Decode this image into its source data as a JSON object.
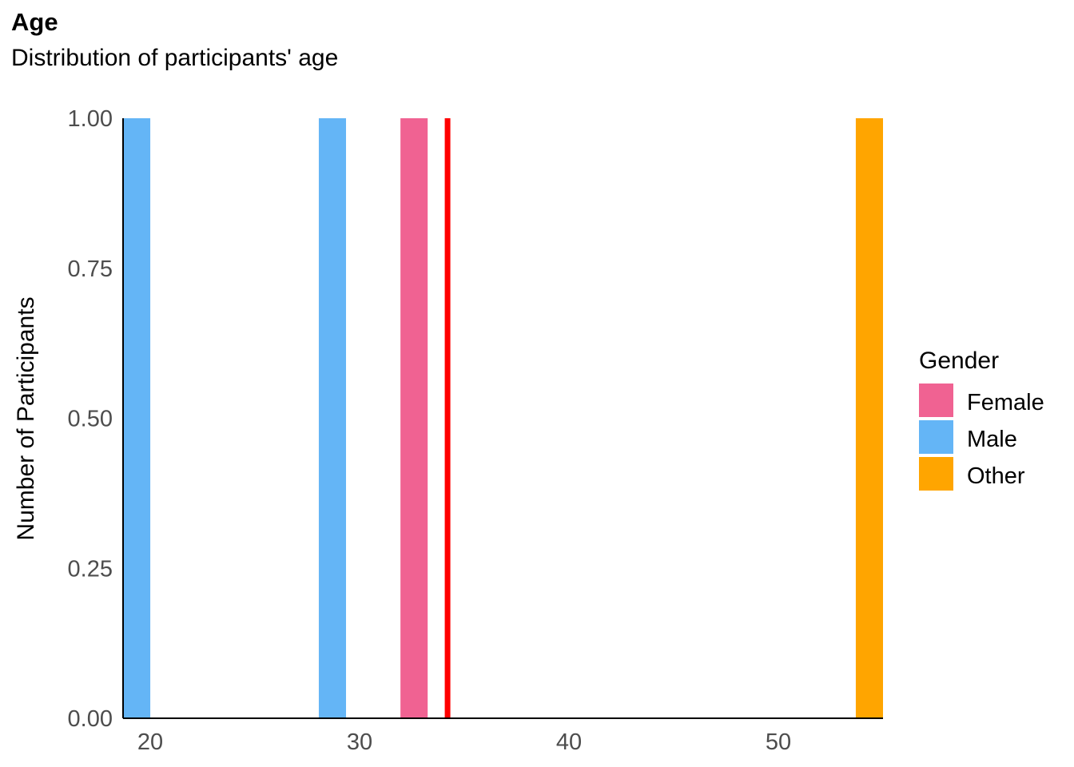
{
  "chart_data": {
    "type": "bar",
    "title": "Age",
    "subtitle": "Distribution of participants' age",
    "xlabel": "",
    "ylabel": "Number of Participants",
    "xlim": [
      18.7,
      55
    ],
    "ylim": [
      0,
      1
    ],
    "x_ticks": [
      20,
      30,
      40,
      50
    ],
    "y_ticks": [
      0.0,
      0.25,
      0.5,
      0.75,
      1.0
    ],
    "y_tick_labels": [
      "0.00",
      "0.25",
      "0.50",
      "0.75",
      "1.00"
    ],
    "grid": false,
    "bin_width": 1.3,
    "series": [
      {
        "name": "Female",
        "color": "#F06292",
        "bars": [
          {
            "x": 32.6,
            "y": 1
          }
        ]
      },
      {
        "name": "Male",
        "color": "#64B5F6",
        "bars": [
          {
            "x": 19.35,
            "y": 1
          },
          {
            "x": 28.7,
            "y": 1
          }
        ]
      },
      {
        "name": "Other",
        "color": "#FFA500",
        "bars": [
          {
            "x": 54.35,
            "y": 1
          }
        ]
      }
    ],
    "reference_line": {
      "x": 34.2,
      "color": "#FF0000"
    },
    "legend": {
      "title": "Gender",
      "position": "right",
      "entries": [
        "Female",
        "Male",
        "Other"
      ]
    }
  }
}
